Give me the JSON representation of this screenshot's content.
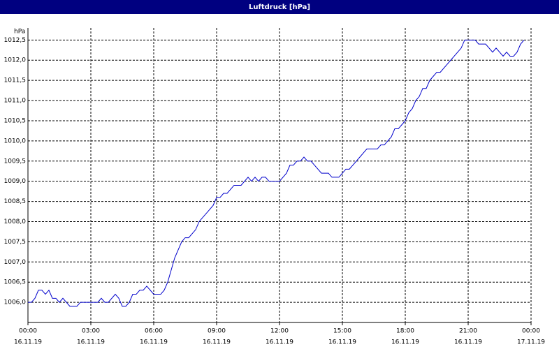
{
  "chart_data": {
    "type": "line",
    "title": "Luftdruck [hPa]",
    "y_label": "hPa",
    "x": [
      0,
      10,
      20,
      30,
      40,
      50,
      60,
      70,
      80,
      90,
      100,
      110,
      120,
      140,
      150,
      200,
      210,
      220,
      230,
      250,
      260,
      270,
      280,
      290,
      300,
      310,
      320,
      330,
      340,
      350,
      360,
      380,
      390,
      400,
      410,
      420,
      430,
      440,
      450,
      460,
      470,
      480,
      490,
      500,
      510,
      520,
      530,
      540,
      550,
      560,
      570,
      580,
      590,
      600,
      610,
      620,
      630,
      640,
      650,
      660,
      670,
      680,
      690,
      710,
      720,
      730,
      740,
      750,
      760,
      770,
      780,
      790,
      800,
      810,
      820,
      830,
      840,
      860,
      870,
      880,
      890,
      900,
      910,
      920,
      930,
      940,
      950,
      960,
      970,
      980,
      1000,
      1010,
      1020,
      1030,
      1040,
      1050,
      1060,
      1070,
      1080,
      1090,
      1100,
      1110,
      1120,
      1130,
      1140,
      1150,
      1160,
      1170,
      1180,
      1190,
      1200,
      1210,
      1220,
      1230,
      1240,
      1250,
      1260,
      1280,
      1290,
      1310,
      1320,
      1330,
      1340,
      1350,
      1360,
      1370,
      1380,
      1390,
      1400,
      1410,
      1420
    ],
    "series": [
      {
        "color": "#0000cc",
        "values": [
          1006.0,
          1006.0,
          1006.1,
          1006.3,
          1006.3,
          1006.2,
          1006.3,
          1006.1,
          1006.1,
          1006.0,
          1006.1,
          1006.0,
          1005.9,
          1005.9,
          1006.0,
          1006.0,
          1006.1,
          1006.0,
          1006.0,
          1006.2,
          1006.1,
          1005.9,
          1005.9,
          1006.0,
          1006.2,
          1006.2,
          1006.3,
          1006.3,
          1006.4,
          1006.3,
          1006.2,
          1006.2,
          1006.3,
          1006.5,
          1006.8,
          1007.1,
          1007.3,
          1007.5,
          1007.6,
          1007.6,
          1007.7,
          1007.8,
          1008.0,
          1008.1,
          1008.2,
          1008.3,
          1008.4,
          1008.6,
          1008.6,
          1008.7,
          1008.7,
          1008.8,
          1008.9,
          1008.9,
          1008.9,
          1009.0,
          1009.1,
          1009.0,
          1009.1,
          1009.0,
          1009.1,
          1009.1,
          1009.0,
          1009.0,
          1009.0,
          1009.1,
          1009.2,
          1009.4,
          1009.4,
          1009.5,
          1009.5,
          1009.6,
          1009.5,
          1009.5,
          1009.4,
          1009.3,
          1009.2,
          1009.2,
          1009.1,
          1009.1,
          1009.1,
          1009.2,
          1009.3,
          1009.3,
          1009.4,
          1009.5,
          1009.6,
          1009.7,
          1009.8,
          1009.8,
          1009.8,
          1009.9,
          1009.9,
          1010.0,
          1010.1,
          1010.3,
          1010.3,
          1010.4,
          1010.5,
          1010.7,
          1010.8,
          1011.0,
          1011.1,
          1011.3,
          1011.3,
          1011.5,
          1011.6,
          1011.7,
          1011.7,
          1011.8,
          1011.9,
          1012.0,
          1012.1,
          1012.2,
          1012.3,
          1012.5,
          1012.5,
          1012.5,
          1012.4,
          1012.4,
          1012.3,
          1012.2,
          1012.3,
          1012.2,
          1012.1,
          1012.2,
          1012.1,
          1012.1,
          1012.2,
          1012.4,
          1012.5
        ]
      }
    ],
    "xlim": [
      0,
      1440
    ],
    "xticks": [
      {
        "value": 0,
        "label": "00:00"
      },
      {
        "value": 180,
        "label": "03:00"
      },
      {
        "value": 360,
        "label": "06:00"
      },
      {
        "value": 540,
        "label": "09:00"
      },
      {
        "value": 720,
        "label": "12:00"
      },
      {
        "value": 900,
        "label": "15:00"
      },
      {
        "value": 1080,
        "label": "18:00"
      },
      {
        "value": 1260,
        "label": "21:00"
      },
      {
        "value": 1440,
        "label": "00:00"
      }
    ],
    "xtick_dates": [
      "16.11.19",
      "16.11.19",
      "16.11.19",
      "16.11.19",
      "16.11.19",
      "16.11.19",
      "16.11.19",
      "16.11.19",
      "17.11.19"
    ],
    "ylim": [
      1005.5,
      1012.8
    ],
    "yticks": [
      {
        "value": 1006,
        "label": "1006,0"
      },
      {
        "value": 1006.5,
        "label": "1006,5"
      },
      {
        "value": 1007,
        "label": "1007,0"
      },
      {
        "value": 1007.5,
        "label": "1007,5"
      },
      {
        "value": 1008,
        "label": "1008,0"
      },
      {
        "value": 1008.5,
        "label": "1008,5"
      },
      {
        "value": 1009,
        "label": "1009,0"
      },
      {
        "value": 1009.5,
        "label": "1009,5"
      },
      {
        "value": 1010,
        "label": "1010,0"
      },
      {
        "value": 1010.5,
        "label": "1010,5"
      },
      {
        "value": 1011,
        "label": "1011,0"
      },
      {
        "value": 1011.5,
        "label": "1011,5"
      },
      {
        "value": 1012,
        "label": "1012,0"
      },
      {
        "value": 1012.5,
        "label": "1012,5"
      }
    ],
    "grid": true
  }
}
